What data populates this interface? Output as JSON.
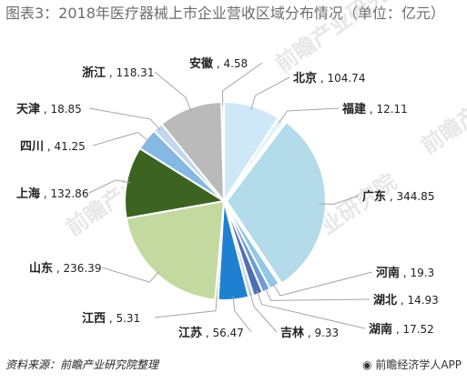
{
  "title": "图表3：2018年医疗器械上市企业营收区域分布情况（单位：亿元）",
  "source": "资料来源：前瞻产业研究院整理",
  "brand": "前瞻经济学人APP",
  "watermark": "前瞻产业研究院",
  "chart_data": {
    "type": "pie",
    "title": "图表3：2018年医疗器械上市企业营收区域分布情况（单位：亿元）",
    "unit": "亿元",
    "slices": [
      {
        "name": "北京",
        "value": 104.74,
        "color": "#cfe8f7"
      },
      {
        "name": "福建",
        "value": 12.11,
        "color": "#e3f1fa"
      },
      {
        "name": "广东",
        "value": 344.85,
        "color": "#b3dbe9"
      },
      {
        "name": "河南",
        "value": 19.3,
        "color": "#92c8e6"
      },
      {
        "name": "湖北",
        "value": 14.93,
        "color": "#6e9bd4"
      },
      {
        "name": "湖南",
        "value": 17.52,
        "color": "#4f6fb5"
      },
      {
        "name": "吉林",
        "value": 9.33,
        "color": "#c3d4ea"
      },
      {
        "name": "江苏",
        "value": 56.47,
        "color": "#1f80d2"
      },
      {
        "name": "江西",
        "value": 5.31,
        "color": "#aad086"
      },
      {
        "name": "山东",
        "value": 236.39,
        "color": "#c4d9a0"
      },
      {
        "name": "上海",
        "value": 132.86,
        "color": "#3d6323"
      },
      {
        "name": "四川",
        "value": 41.25,
        "color": "#85b8e2"
      },
      {
        "name": "天津",
        "value": 18.85,
        "color": "#c2d6ee"
      },
      {
        "name": "浙江",
        "value": 118.31,
        "color": "#bababa"
      },
      {
        "name": "安徽",
        "value": 4.58,
        "color": "#d6d6d6"
      }
    ]
  }
}
